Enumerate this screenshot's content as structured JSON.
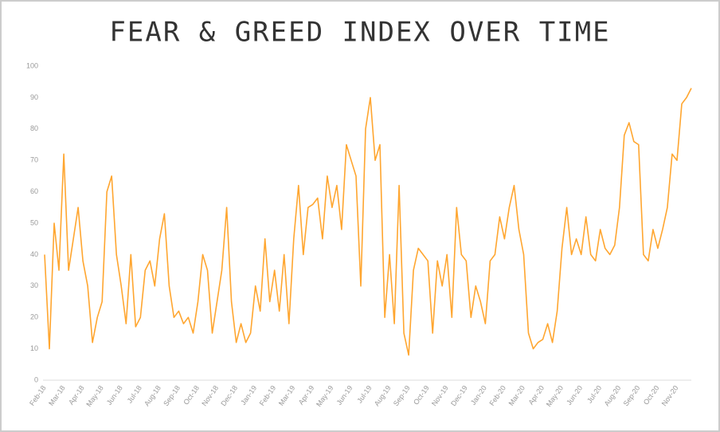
{
  "chart_data": {
    "type": "line",
    "title": "FEAR & GREED INDEX OVER TIME",
    "categories": [
      "Feb-18",
      null,
      null,
      null,
      "Mar-18",
      null,
      null,
      null,
      "Apr-18",
      null,
      null,
      null,
      "May-18",
      null,
      null,
      null,
      "Jun-18",
      null,
      null,
      null,
      "Jul-18",
      null,
      null,
      null,
      "Aug-18",
      null,
      null,
      null,
      "Sep-18",
      null,
      null,
      null,
      "Oct-18",
      null,
      null,
      null,
      "Nov-18",
      null,
      null,
      null,
      "Dec-18",
      null,
      null,
      null,
      "Jan-19",
      null,
      null,
      null,
      "Feb-19",
      null,
      null,
      null,
      "Mar-19",
      null,
      null,
      null,
      "Apr-19",
      null,
      null,
      null,
      "May-19",
      null,
      null,
      null,
      "Jun-19",
      null,
      null,
      null,
      "Jul-19",
      null,
      null,
      null,
      "Aug-19",
      null,
      null,
      null,
      "Sep-19",
      null,
      null,
      null,
      "Oct-19",
      null,
      null,
      null,
      "Nov-19",
      null,
      null,
      null,
      "Dec-19",
      null,
      null,
      null,
      "Jan-20",
      null,
      null,
      null,
      "Feb-20",
      null,
      null,
      null,
      "Mar-20",
      null,
      null,
      null,
      "Apr-20",
      null,
      null,
      null,
      "May-20",
      null,
      null,
      null,
      "Jun-20",
      null,
      null,
      null,
      "Jul-20",
      null,
      null,
      null,
      "Aug-20",
      null,
      null,
      null,
      "Sep-20",
      null,
      null,
      null,
      "Oct-20",
      null,
      null,
      null,
      "Nov-20",
      null,
      null,
      null
    ],
    "series": [
      {
        "name": "Fear & Greed Index",
        "color": "#ffa630",
        "values": [
          40,
          10,
          50,
          35,
          72,
          35,
          45,
          55,
          38,
          30,
          12,
          20,
          25,
          60,
          65,
          40,
          30,
          18,
          40,
          17,
          20,
          35,
          38,
          30,
          45,
          53,
          30,
          20,
          22,
          18,
          20,
          15,
          25,
          40,
          35,
          15,
          25,
          35,
          55,
          25,
          12,
          18,
          12,
          15,
          30,
          22,
          45,
          25,
          35,
          22,
          40,
          18,
          45,
          62,
          40,
          55,
          56,
          58,
          45,
          65,
          55,
          62,
          48,
          75,
          70,
          65,
          30,
          80,
          90,
          70,
          75,
          20,
          40,
          18,
          62,
          15,
          8,
          35,
          42,
          40,
          38,
          15,
          38,
          30,
          40,
          20,
          55,
          40,
          38,
          20,
          30,
          25,
          18,
          38,
          40,
          52,
          45,
          55,
          62,
          48,
          40,
          15,
          10,
          12,
          13,
          18,
          12,
          22,
          42,
          55,
          40,
          45,
          40,
          52,
          40,
          38,
          48,
          42,
          40,
          43,
          55,
          78,
          82,
          76,
          75,
          40,
          38,
          48,
          42,
          48,
          55,
          72,
          70,
          88,
          90,
          93
        ]
      }
    ],
    "ylim": [
      0,
      100
    ],
    "yticks": [
      0,
      10,
      20,
      30,
      40,
      50,
      60,
      70,
      80,
      90,
      100
    ],
    "grid": false
  }
}
